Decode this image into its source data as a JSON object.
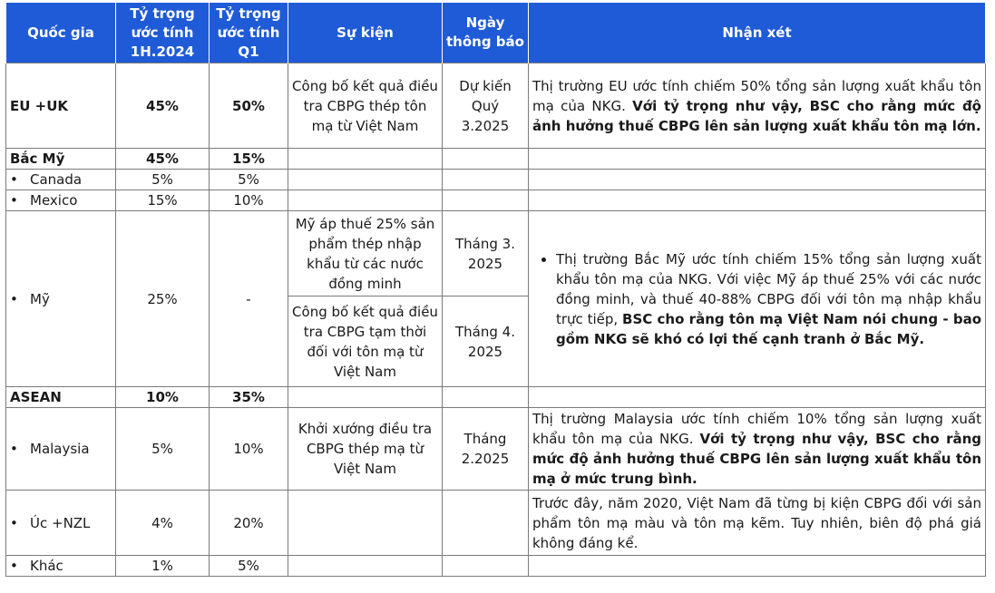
{
  "headers": {
    "country": "Quốc gia",
    "share_1h": "Tỷ trọng ước tính 1H.2024",
    "share_q1": "Tỷ trọng ước tính Q1",
    "event": "Sự kiện",
    "date": "Ngày thông báo",
    "comment": "Nhận xét"
  },
  "rows": {
    "eu": {
      "country": "EU +UK",
      "share_1h": "45%",
      "share_q1": "50%",
      "event": "Công bố kết quả điều tra CBPG thép tôn mạ từ Việt Nam",
      "date": "Dự kiến Quý 3.2025",
      "comment_plain": "Thị trường EU ước tính chiếm 50% tổng sản lượng xuất khẩu tôn mạ của NKG. ",
      "comment_bold": "Với tỷ trọng như vậy, BSC cho rằng mức độ ảnh hưởng thuế CBPG lên sản lượng xuất khẩu tôn mạ lớn."
    },
    "na": {
      "country": "Bắc Mỹ",
      "share_1h": "45%",
      "share_q1": "15%"
    },
    "canada": {
      "country": "Canada",
      "share_1h": "5%",
      "share_q1": "5%"
    },
    "mexico": {
      "country": "Mexico",
      "share_1h": "15%",
      "share_q1": "10%"
    },
    "us": {
      "country": "Mỹ",
      "share_1h": "25%",
      "share_q1": "-",
      "event1": "Mỹ áp thuế 25% sản phẩm thép nhập khẩu từ các nước đồng minh",
      "date1": "Tháng 3. 2025",
      "event2": "Công bố kết quả điều tra CBPG tạm thời đối với tôn mạ từ Việt Nam",
      "date2": "Tháng 4. 2025",
      "comment_plain": "Thị trường Bắc Mỹ ước tính chiếm 15% tổng sản lượng xuất khẩu tôn mạ của NKG. Với việc Mỹ áp thuế 25% với các nước đồng minh, và thuế 40-88% CBPG đối với tôn mạ nhập khẩu trực tiếp, ",
      "comment_bold": "BSC cho rằng tôn mạ Việt Nam nói chung  - bao gồm NKG sẽ khó có lợi thế cạnh tranh ở Bắc Mỹ."
    },
    "asean": {
      "country": "ASEAN",
      "share_1h": "10%",
      "share_q1": "35%"
    },
    "malaysia": {
      "country": "Malaysia",
      "share_1h": "5%",
      "share_q1": "10%",
      "event": "Khởi xướng điều tra CBPG thép mạ từ Việt Nam",
      "date": "Tháng 2.2025",
      "comment_plain": "Thị trường Malaysia ước tính chiếm 10% tổng sản lượng xuất khẩu tôn mạ của NKG. ",
      "comment_bold": "Với tỷ trọng như vậy, BSC cho rằng mức độ ảnh hưởng thuế CBPG lên sản lượng xuất khẩu tôn mạ ở mức trung bình."
    },
    "aunz": {
      "country": "Úc +NZL",
      "share_1h": "4%",
      "share_q1": "20%",
      "comment_plain": "Trước đây, năm 2020, Việt Nam đã từng bị kiện CBPG đối với sản phẩm tôn mạ màu và tôn mạ kẽm. Tuy nhiên, biên độ phá giá không đáng kể."
    },
    "other": {
      "country": "Khác",
      "share_1h": "1%",
      "share_q1": "5%"
    }
  }
}
